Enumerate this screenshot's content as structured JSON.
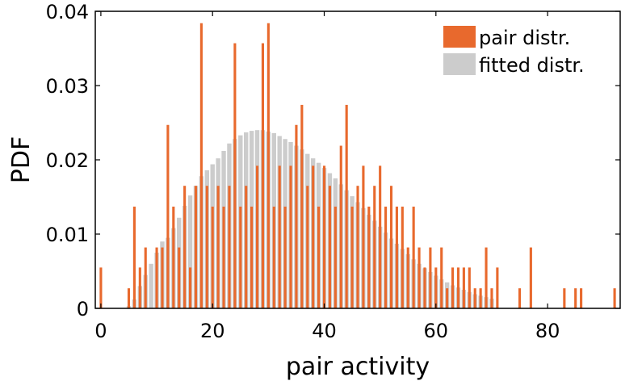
{
  "chart_data": {
    "type": "bar",
    "xlabel": "pair activity",
    "ylabel": "PDF",
    "xlim": [
      -1,
      93
    ],
    "ylim": [
      0,
      0.04
    ],
    "xticks": [
      0,
      20,
      40,
      60,
      80
    ],
    "xtick_labels": [
      "0",
      "20",
      "40",
      "60",
      "80"
    ],
    "yticks": [
      0,
      0.01,
      0.02,
      0.03,
      0.04
    ],
    "ytick_labels": [
      "0",
      "0.01",
      "0.02",
      "0.03",
      "0.04"
    ],
    "grid": false,
    "legend_position": "top-right",
    "colors": {
      "pair": "#e8692d",
      "fitted": "#cccccc",
      "axis": "#000000"
    },
    "series": [
      {
        "name": "fitted distr.",
        "x": [
          5,
          6,
          7,
          8,
          9,
          10,
          11,
          12,
          13,
          14,
          15,
          16,
          17,
          18,
          19,
          20,
          21,
          22,
          23,
          24,
          25,
          26,
          27,
          28,
          29,
          30,
          31,
          32,
          33,
          34,
          35,
          36,
          37,
          38,
          39,
          40,
          41,
          42,
          43,
          44,
          45,
          46,
          47,
          48,
          49,
          50,
          51,
          52,
          53,
          54,
          55,
          56,
          57,
          58,
          59,
          60,
          61,
          62,
          63,
          64,
          65,
          66,
          67,
          68,
          69,
          70
        ],
        "values": [
          0.0003,
          0.0012,
          0.003,
          0.0045,
          0.006,
          0.0075,
          0.009,
          0.0095,
          0.0108,
          0.0122,
          0.0138,
          0.0152,
          0.0165,
          0.0178,
          0.0186,
          0.0194,
          0.0202,
          0.0212,
          0.0222,
          0.0228,
          0.0233,
          0.0237,
          0.0239,
          0.024,
          0.024,
          0.0238,
          0.0236,
          0.0232,
          0.0228,
          0.0224,
          0.0219,
          0.0214,
          0.0208,
          0.0202,
          0.0196,
          0.0189,
          0.0182,
          0.0175,
          0.0167,
          0.0159,
          0.0151,
          0.0143,
          0.0135,
          0.0126,
          0.0118,
          0.011,
          0.0102,
          0.0094,
          0.0087,
          0.008,
          0.0073,
          0.0066,
          0.006,
          0.0054,
          0.0049,
          0.0044,
          0.0039,
          0.0035,
          0.0031,
          0.0028,
          0.0025,
          0.0022,
          0.0019,
          0.0017,
          0.0015,
          0.0013
        ]
      },
      {
        "name": "pair distr.",
        "x": [
          0,
          5,
          6,
          7,
          8,
          10,
          11,
          12,
          13,
          14,
          15,
          16,
          17,
          18,
          19,
          20,
          21,
          22,
          23,
          24,
          25,
          26,
          27,
          28,
          29,
          30,
          31,
          32,
          33,
          34,
          35,
          36,
          37,
          38,
          39,
          40,
          41,
          42,
          43,
          44,
          45,
          46,
          47,
          48,
          49,
          50,
          51,
          52,
          53,
          54,
          55,
          56,
          57,
          58,
          59,
          60,
          61,
          62,
          63,
          64,
          65,
          66,
          67,
          68,
          69,
          70,
          71,
          75,
          77,
          83,
          85,
          86,
          92
        ],
        "values": [
          0.0055,
          0.0027,
          0.0137,
          0.0055,
          0.0082,
          0.0082,
          0.0082,
          0.0247,
          0.0137,
          0.0082,
          0.0165,
          0.0055,
          0.0165,
          0.0384,
          0.0165,
          0.0137,
          0.0165,
          0.0137,
          0.0165,
          0.0357,
          0.0137,
          0.0165,
          0.0137,
          0.0192,
          0.0357,
          0.0384,
          0.0137,
          0.0192,
          0.0137,
          0.0192,
          0.0247,
          0.0274,
          0.0165,
          0.0192,
          0.0137,
          0.0192,
          0.0165,
          0.0137,
          0.0219,
          0.0274,
          0.0137,
          0.0165,
          0.0192,
          0.0137,
          0.0165,
          0.0192,
          0.0137,
          0.0165,
          0.0137,
          0.0137,
          0.0082,
          0.0137,
          0.0082,
          0.0055,
          0.0082,
          0.0055,
          0.0082,
          0.0027,
          0.0055,
          0.0055,
          0.0055,
          0.0055,
          0.0027,
          0.0027,
          0.0082,
          0.0027,
          0.0055,
          0.0027,
          0.0082,
          0.0027,
          0.0027,
          0.0027,
          0.0027
        ]
      }
    ]
  }
}
